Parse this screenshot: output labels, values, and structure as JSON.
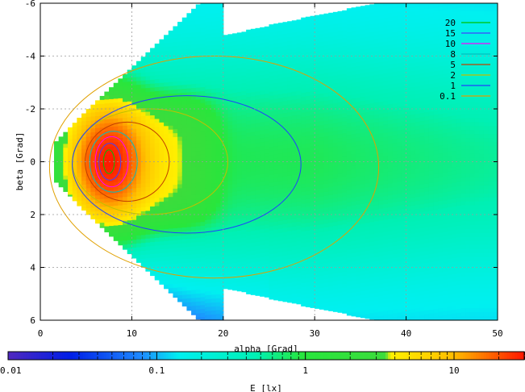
{
  "chart_data": {
    "type": "heatmap",
    "title": "",
    "xlabel": "alpha [Grad]",
    "ylabel": "beta [Grad]",
    "xlim": [
      0,
      50
    ],
    "ylim": [
      6,
      -6
    ],
    "x_ticks": [
      "0",
      "10",
      "20",
      "30",
      "40",
      "50"
    ],
    "y_ticks": [
      "-6",
      "-4",
      "-2",
      "0",
      "2",
      "4",
      "6"
    ],
    "grid": true,
    "contour_legend": {
      "placement": "top-right",
      "entries": [
        {
          "level": "20",
          "color": "#00c000"
        },
        {
          "level": "15",
          "color": "#4040ff"
        },
        {
          "level": "10",
          "color": "#ff00ff"
        },
        {
          "level": "8",
          "color": "#00c0c0"
        },
        {
          "level": "5",
          "color": "#c04000"
        },
        {
          "level": "2",
          "color": "#c0c000"
        },
        {
          "level": "1",
          "color": "#2040ff"
        },
        {
          "level": "0.1",
          "color": "#e0a000"
        }
      ]
    },
    "colorbar": {
      "label": "E [lx]",
      "scale": "log",
      "range": [
        0.01,
        30
      ],
      "tick_labels": [
        "0.01",
        "0.1",
        "1",
        "10"
      ],
      "tick_values": [
        0.01,
        0.1,
        1,
        10
      ]
    },
    "peak": {
      "alpha": 7.5,
      "beta": 0,
      "value": 25
    }
  }
}
